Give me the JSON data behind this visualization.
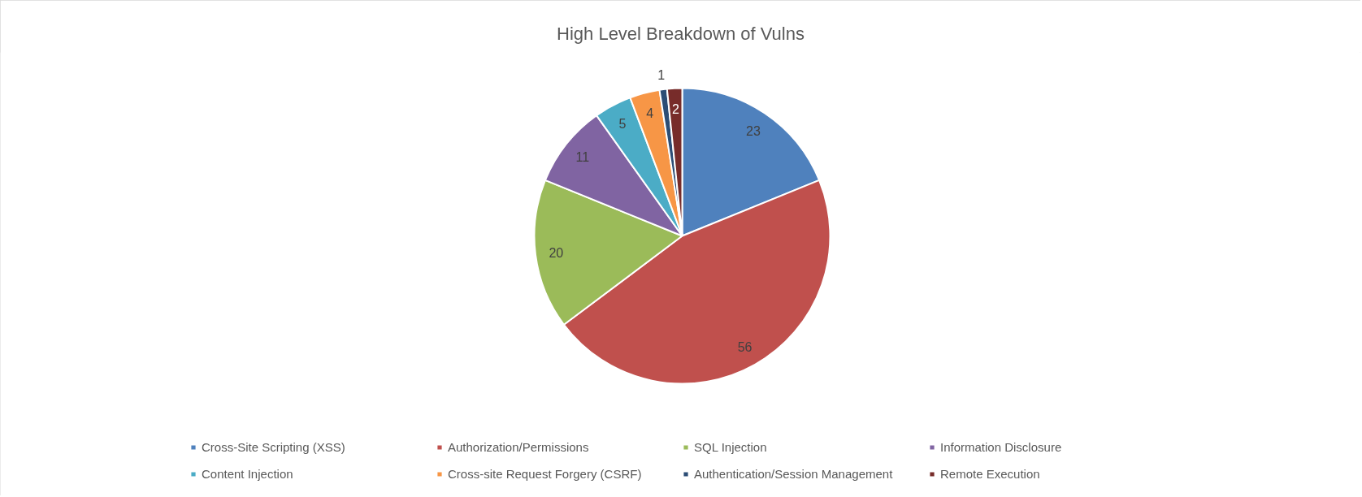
{
  "chart_data": {
    "type": "pie",
    "title": "High Level Breakdown of Vulns",
    "categories": [
      "Cross-Site Scripting (XSS)",
      "Authorization/Permissions",
      "SQL Injection",
      "Information Disclosure",
      "Content Injection",
      "Cross-site Request Forgery (CSRF)",
      "Authentication/Session Management",
      "Remote Execution"
    ],
    "values": [
      23,
      56,
      20,
      11,
      5,
      4,
      1,
      2
    ],
    "colors": [
      "#4f81bd",
      "#c0504d",
      "#9bbb59",
      "#8064a2",
      "#4bacc6",
      "#f79646",
      "#2c4d75",
      "#772c2a"
    ],
    "data_labels": true,
    "legend": "bottom"
  }
}
